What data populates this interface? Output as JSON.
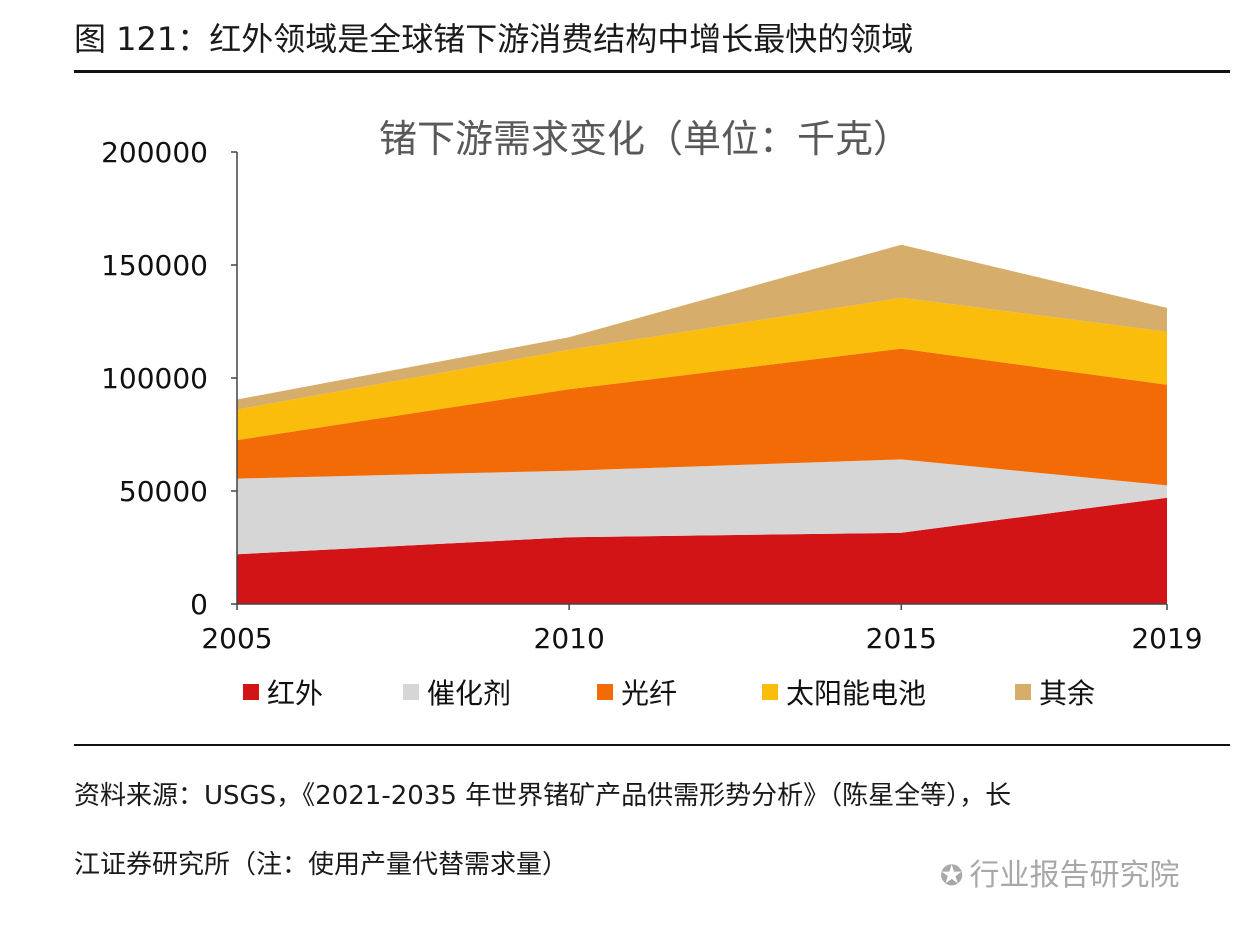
{
  "figure": {
    "title": "图 121：红外领域是全球锗下游消费结构中增长最快的领域"
  },
  "source": {
    "line1": "资料来源：USGS，《2021-2035 年世界锗矿产品供需形势分析》（陈星全等），长",
    "line2": "江证券研究所（注：使用产量代替需求量）"
  },
  "watermark": {
    "text": "行业报告研究院"
  },
  "chart_data": {
    "type": "area",
    "stacked": true,
    "title": "锗下游需求变化（单位：千克）",
    "x": [
      2005,
      2010,
      2015,
      2019
    ],
    "x_ticks": [
      "2005",
      "2010",
      "2015",
      "2019"
    ],
    "y_ticks": [
      "0",
      "50000",
      "100000",
      "150000",
      "200000"
    ],
    "ylim": [
      0,
      200000
    ],
    "legend_position": "bottom",
    "series": [
      {
        "name": "红外",
        "color": "#d31417",
        "values": [
          22000,
          29500,
          31500,
          47000
        ]
      },
      {
        "name": "催化剂",
        "color": "#d6d6d6",
        "values": [
          33500,
          29500,
          32500,
          5500
        ]
      },
      {
        "name": "光纤",
        "color": "#f26b06",
        "values": [
          17000,
          36000,
          49000,
          44500
        ]
      },
      {
        "name": "太阳能电池",
        "color": "#fbbd0c",
        "values": [
          13500,
          17500,
          22500,
          23500
        ]
      },
      {
        "name": "其余",
        "color": "#d6ad6a",
        "values": [
          4500,
          5500,
          23500,
          10500
        ]
      }
    ]
  }
}
